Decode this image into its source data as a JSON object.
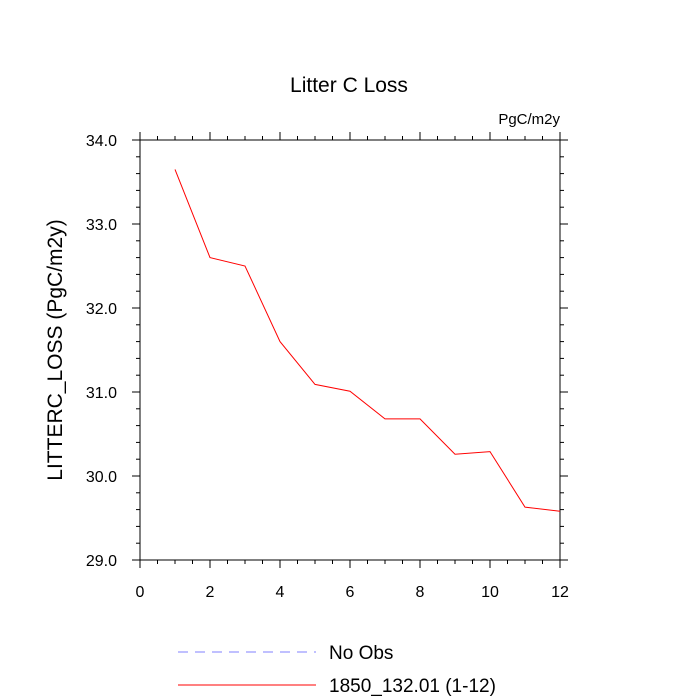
{
  "chart_data": {
    "type": "line",
    "title": "Litter C Loss",
    "units_label": "PgC/m2y",
    "xlabel": "",
    "ylabel": "LITTERC_LOSS  (PgC/m2y)",
    "xlim": [
      0,
      12
    ],
    "ylim": [
      29.0,
      34.0
    ],
    "x_ticks": [
      0,
      2,
      4,
      6,
      8,
      10,
      12
    ],
    "x_tick_labels": [
      "0",
      "2",
      "4",
      "6",
      "8",
      "10",
      "12"
    ],
    "y_ticks": [
      29.0,
      30.0,
      31.0,
      32.0,
      33.0,
      34.0
    ],
    "y_tick_labels": [
      "29.0",
      "30.0",
      "31.0",
      "32.0",
      "33.0",
      "34.0"
    ],
    "grid": false,
    "legend_position": "bottom",
    "series": [
      {
        "name": "1850_132.01 (1-12)",
        "color": "#ff0000",
        "style": "solid",
        "x": [
          1,
          2,
          3,
          4,
          5,
          6,
          7,
          8,
          9,
          10,
          11,
          12
        ],
        "values": [
          33.65,
          32.6,
          32.5,
          31.6,
          31.09,
          31.01,
          30.68,
          30.68,
          30.26,
          30.29,
          29.63,
          29.58
        ]
      }
    ],
    "legend": [
      {
        "label": "No Obs",
        "color": "#8080ff",
        "style": "dashed"
      },
      {
        "label": "1850_132.01 (1-12)",
        "color": "#ff0000",
        "style": "solid"
      }
    ]
  }
}
